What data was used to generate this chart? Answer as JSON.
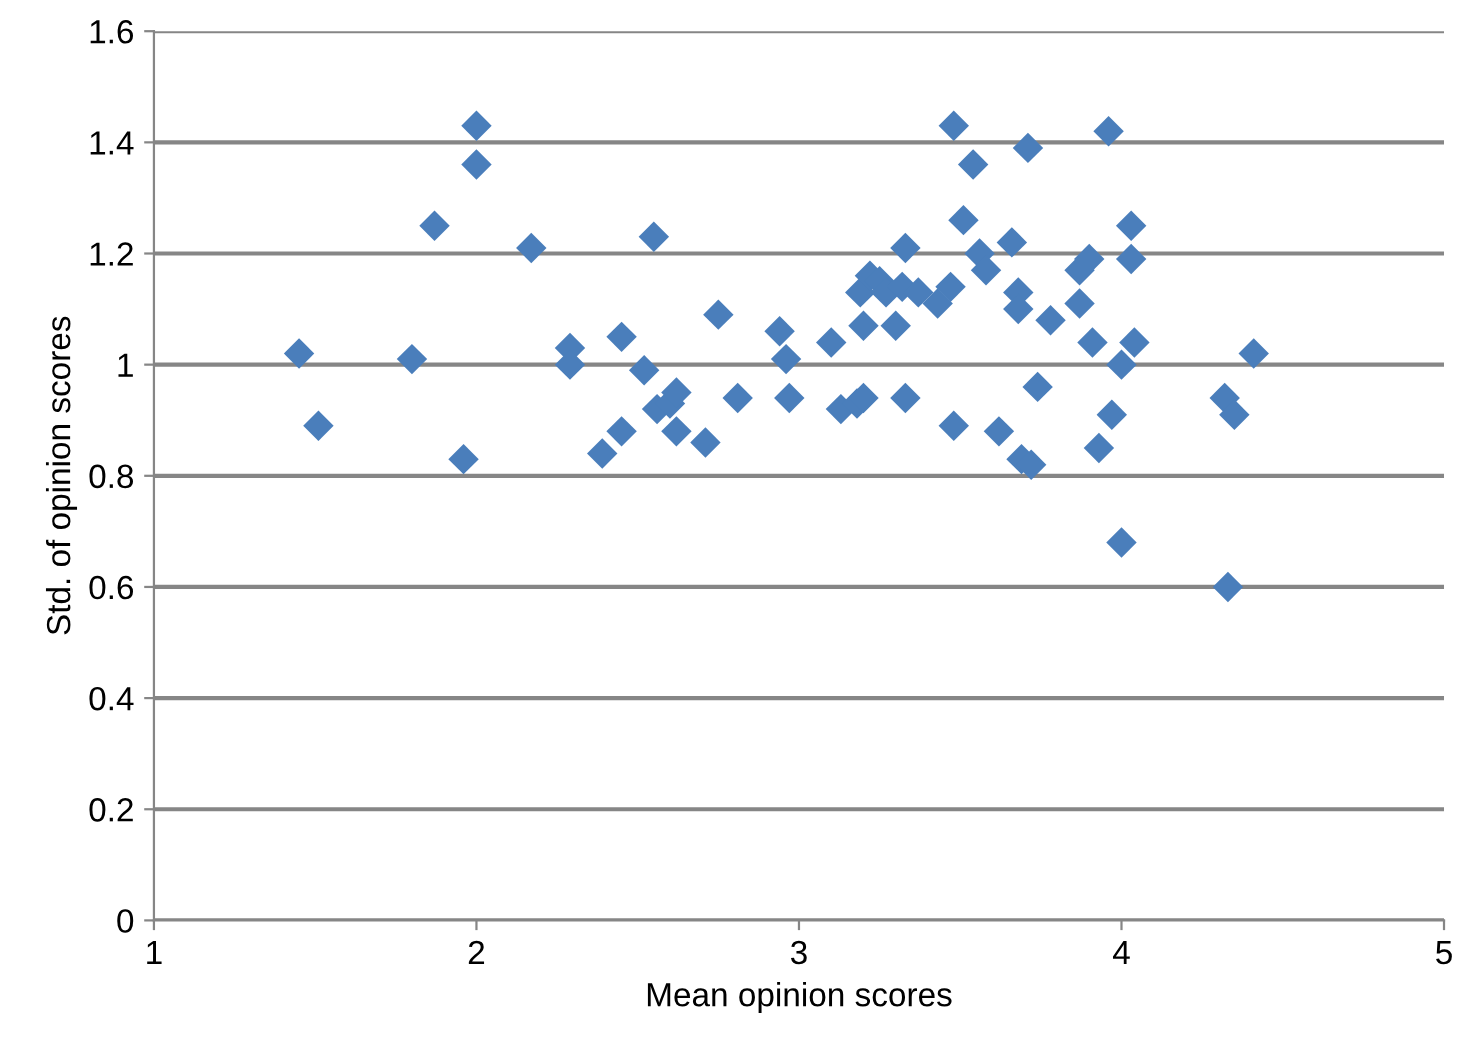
{
  "chart_data": {
    "type": "scatter",
    "xlabel": "Mean opinion scores",
    "ylabel": "Std. of opinion scores",
    "xlim": [
      1,
      5
    ],
    "xticks": [
      1,
      2,
      3,
      4,
      5
    ],
    "ylim": [
      0,
      1.6
    ],
    "yticks": [
      0,
      0.2,
      0.4,
      0.6,
      0.8,
      1,
      1.2,
      1.4,
      1.6
    ],
    "grid": "y",
    "marker": "diamond",
    "series": [
      {
        "color": "#4a7ebb",
        "x": [
          1.45,
          1.51,
          1.8,
          1.87,
          1.96,
          2.0,
          2.0,
          2.17,
          2.29,
          2.29,
          2.39,
          2.45,
          2.45,
          2.52,
          2.55,
          2.56,
          2.6,
          2.62,
          2.62,
          2.71,
          2.75,
          2.81,
          2.94,
          2.96,
          2.97,
          3.1,
          3.13,
          3.18,
          3.19,
          3.2,
          3.2,
          3.22,
          3.25,
          3.27,
          3.3,
          3.32,
          3.33,
          3.33,
          3.37,
          3.43,
          3.47,
          3.48,
          3.48,
          3.51,
          3.54,
          3.56,
          3.58,
          3.62,
          3.66,
          3.68,
          3.68,
          3.69,
          3.71,
          3.72,
          3.74,
          3.78,
          3.87,
          3.87,
          3.9,
          3.91,
          3.93,
          3.96,
          3.97,
          4.0,
          4.0,
          4.03,
          4.03,
          4.04,
          4.32,
          4.33,
          4.35,
          4.41
        ],
        "values": [
          1.02,
          0.89,
          1.01,
          1.25,
          0.83,
          1.43,
          1.36,
          1.21,
          1.03,
          1.0,
          0.84,
          1.05,
          0.88,
          0.99,
          1.23,
          0.92,
          0.93,
          0.95,
          0.88,
          0.86,
          1.09,
          0.94,
          1.06,
          1.01,
          0.94,
          1.04,
          0.92,
          0.93,
          1.13,
          0.94,
          1.07,
          1.16,
          1.15,
          1.13,
          1.07,
          1.14,
          1.21,
          0.94,
          1.13,
          1.11,
          1.14,
          0.89,
          1.43,
          1.26,
          1.36,
          1.2,
          1.17,
          0.88,
          1.22,
          1.13,
          1.1,
          0.83,
          1.39,
          0.82,
          0.96,
          1.08,
          1.17,
          1.11,
          1.19,
          1.04,
          0.85,
          1.42,
          0.91,
          1.0,
          0.68,
          1.25,
          1.19,
          1.04,
          0.94,
          0.6,
          0.91,
          1.02
        ]
      }
    ]
  }
}
